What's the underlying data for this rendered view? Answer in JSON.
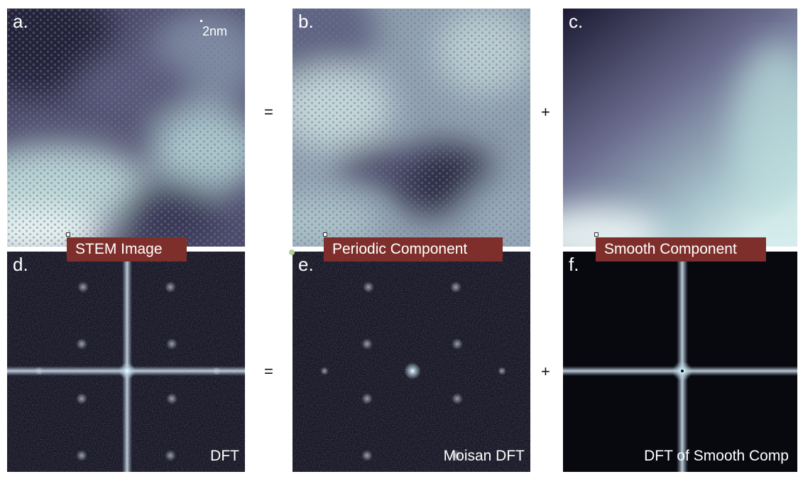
{
  "panels": {
    "a": {
      "letter": "a.",
      "scale_text": "2nm"
    },
    "b": {
      "letter": "b."
    },
    "c": {
      "letter": "c."
    },
    "d": {
      "letter": "d.",
      "caption": "DFT"
    },
    "e": {
      "letter": "e.",
      "caption": "Moisan DFT"
    },
    "f": {
      "letter": "f.",
      "caption": "DFT of Smooth Comp"
    }
  },
  "labels": {
    "stem": "STEM Image",
    "periodic": "Periodic Component",
    "smooth": "Smooth Component"
  },
  "operators": {
    "equals": "=",
    "plus": "+"
  }
}
